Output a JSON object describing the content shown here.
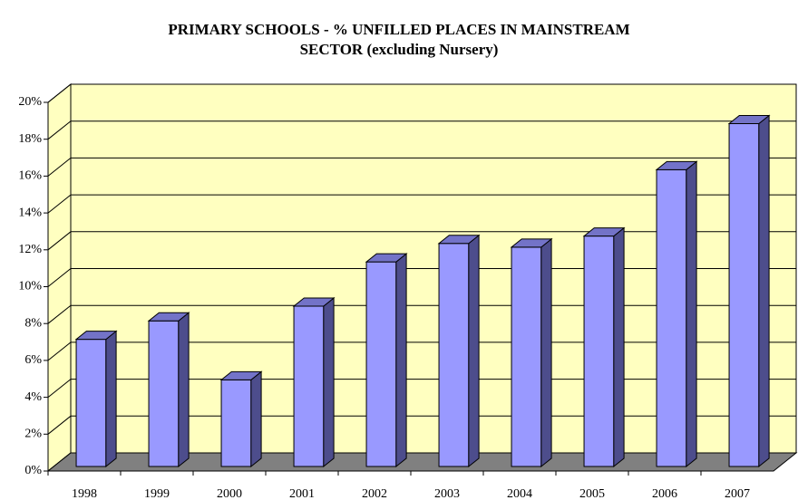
{
  "chart_data": {
    "type": "bar3d",
    "title": [
      "PRIMARY SCHOOLS - % UNFILLED PLACES IN MAINSTREAM",
      "SECTOR (excluding Nursery)"
    ],
    "categories": [
      "1998",
      "1999",
      "2000",
      "2001",
      "2002",
      "2003",
      "2004",
      "2005",
      "2006",
      "2007"
    ],
    "values": [
      6.9,
      7.9,
      4.7,
      8.7,
      11.1,
      12.1,
      11.9,
      12.5,
      16.1,
      18.6
    ],
    "color": "#9999ff",
    "ylim": [
      0,
      20
    ],
    "yticks": [
      {
        "value": 0,
        "label": "0%"
      },
      {
        "value": 2,
        "label": "2%"
      },
      {
        "value": 4,
        "label": "4%"
      },
      {
        "value": 6,
        "label": "6%"
      },
      {
        "value": 8,
        "label": "8%"
      },
      {
        "value": 10,
        "label": "10%"
      },
      {
        "value": 12,
        "label": "12%"
      },
      {
        "value": 14,
        "label": "14%"
      },
      {
        "value": 16,
        "label": "16%"
      },
      {
        "value": 18,
        "label": "18%"
      },
      {
        "value": 20,
        "label": "20%"
      }
    ],
    "grid": true
  }
}
